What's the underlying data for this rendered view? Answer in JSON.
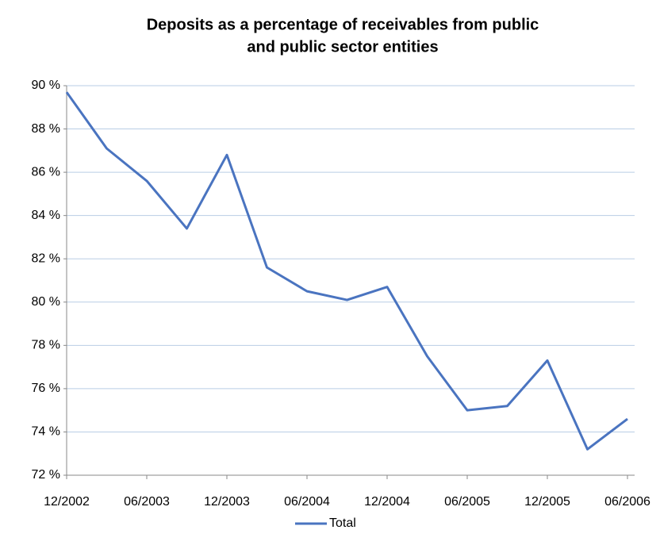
{
  "chart_data": {
    "type": "line",
    "title": [
      "Deposits as a percentage of receivables from public",
      "and public sector entities"
    ],
    "categories": [
      "12/2002",
      null,
      "06/2003",
      null,
      "12/2003",
      null,
      "06/2004",
      null,
      "12/2004",
      null,
      "06/2005",
      null,
      "12/2005",
      null,
      "06/2006"
    ],
    "series": [
      {
        "name": "Total",
        "color": "#4a74c0",
        "values": [
          89.7,
          87.1,
          85.6,
          83.4,
          86.8,
          81.6,
          80.5,
          80.1,
          80.7,
          77.5,
          75.0,
          75.2,
          77.3,
          73.2,
          74.6
        ]
      }
    ],
    "ylim": [
      72,
      90
    ],
    "yticks": [
      {
        "value": 72,
        "label": "72 %"
      },
      {
        "value": 74,
        "label": "74 %"
      },
      {
        "value": 76,
        "label": "76 %"
      },
      {
        "value": 78,
        "label": "78 %"
      },
      {
        "value": 80,
        "label": "80 %"
      },
      {
        "value": 82,
        "label": "82 %"
      },
      {
        "value": 84,
        "label": "84 %"
      },
      {
        "value": 86,
        "label": "86 %"
      },
      {
        "value": 88,
        "label": "88 %"
      },
      {
        "value": 90,
        "label": "90 %"
      }
    ],
    "grid": true,
    "legend": "bottom"
  }
}
